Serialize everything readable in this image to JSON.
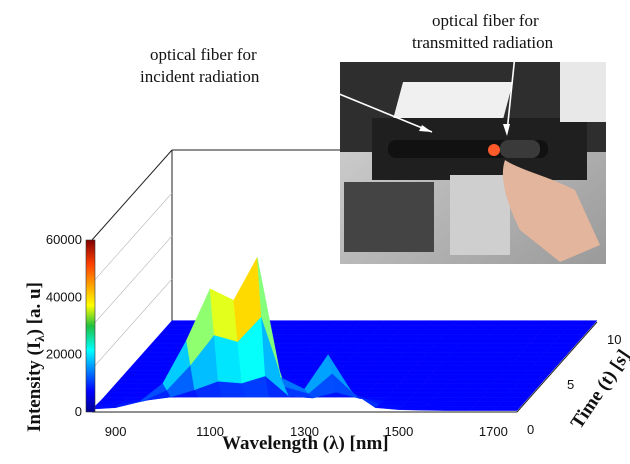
{
  "chart_data": {
    "type": "surface",
    "xlabel": "Wavelength (λ) [nm]",
    "ylabel": "Time (t) [s]",
    "zlabel": "Intensity (I",
    "zlabel_sub": "λ",
    "zlabel_tail": ") [a. u]",
    "x_ticks": [
      "900",
      "1100",
      "1300",
      "1500",
      "1700"
    ],
    "y_ticks": [
      "0",
      "5",
      "10"
    ],
    "z_ticks": [
      "0",
      "20000",
      "40000",
      "60000"
    ],
    "xlim": [
      850,
      1750
    ],
    "ylim": [
      0,
      10
    ],
    "zlim": [
      0,
      60000
    ],
    "colormap": "jet",
    "colorbar": true,
    "time_values": [
      0,
      2,
      4,
      6,
      8,
      10
    ],
    "spectrum": {
      "wavelength": [
        850,
        900,
        950,
        1000,
        1050,
        1100,
        1150,
        1200,
        1250,
        1300,
        1350,
        1400,
        1450,
        1500,
        1550,
        1600,
        1650,
        1700,
        1750
      ],
      "intensity_at_t0": [
        1000,
        1500,
        3500,
        10000,
        25000,
        43000,
        39000,
        54000,
        12000,
        8000,
        20000,
        7000,
        1500,
        800,
        600,
        500,
        500,
        500,
        500
      ]
    },
    "intensity_after_source_off": 500
  },
  "annotations": {
    "incident_line1": "optical fiber for",
    "incident_line2": "incident radiation",
    "transmitted_line1": "optical fiber for",
    "transmitted_line2": "transmitted radiation"
  },
  "photo": {
    "description_icon": "spectrometer-photo"
  },
  "colors": {
    "surface_low": "#10208a",
    "surface_high": "#c00000",
    "box_edge": "#222222"
  }
}
